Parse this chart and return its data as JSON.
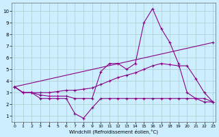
{
  "xlabel": "Windchill (Refroidissement éolien,°C)",
  "background_color": "#cceeff",
  "grid_color": "#aacccc",
  "line_color": "#880088",
  "x_ticks": [
    0,
    1,
    2,
    3,
    4,
    5,
    6,
    7,
    8,
    9,
    10,
    11,
    12,
    13,
    14,
    15,
    16,
    17,
    18,
    19,
    20,
    21,
    22,
    23
  ],
  "y_ticks": [
    1,
    2,
    3,
    4,
    5,
    6,
    7,
    8,
    9,
    10
  ],
  "xlim": [
    -0.3,
    23.3
  ],
  "ylim": [
    0.5,
    10.7
  ],
  "series": [
    {
      "x": [
        0,
        1,
        2,
        3,
        4,
        5,
        6,
        7,
        8,
        9,
        10,
        11,
        12,
        13,
        14,
        15,
        16,
        17,
        18,
        19,
        20,
        21,
        22,
        23
      ],
      "y": [
        3.5,
        3.0,
        3.0,
        2.5,
        2.5,
        2.5,
        2.5,
        1.2,
        0.8,
        1.7,
        2.5,
        2.5,
        2.5,
        2.5,
        2.5,
        2.5,
        2.5,
        2.5,
        2.5,
        2.5,
        2.5,
        2.5,
        2.5,
        2.2
      ]
    },
    {
      "x": [
        0,
        1,
        2,
        3,
        4,
        5,
        6,
        7,
        8,
        9,
        10,
        11,
        12,
        13,
        14,
        15,
        16,
        17,
        18,
        19,
        20,
        21,
        22,
        23
      ],
      "y": [
        3.5,
        3.0,
        3.0,
        2.8,
        2.7,
        2.7,
        2.7,
        2.5,
        2.5,
        2.5,
        4.8,
        5.5,
        5.5,
        5.0,
        5.5,
        9.0,
        10.2,
        8.5,
        7.3,
        5.5,
        3.0,
        2.5,
        2.2,
        2.2
      ]
    },
    {
      "x": [
        0,
        23
      ],
      "y": [
        3.5,
        7.3
      ]
    },
    {
      "x": [
        0,
        1,
        2,
        3,
        4,
        5,
        6,
        7,
        8,
        9,
        10,
        11,
        12,
        13,
        14,
        15,
        16,
        17,
        18,
        19,
        20,
        21,
        22,
        23
      ],
      "y": [
        3.5,
        3.0,
        3.0,
        3.0,
        3.0,
        3.1,
        3.2,
        3.2,
        3.3,
        3.4,
        3.7,
        4.0,
        4.3,
        4.5,
        4.7,
        5.0,
        5.3,
        5.5,
        5.4,
        5.3,
        5.3,
        4.2,
        3.0,
        2.2
      ]
    }
  ]
}
